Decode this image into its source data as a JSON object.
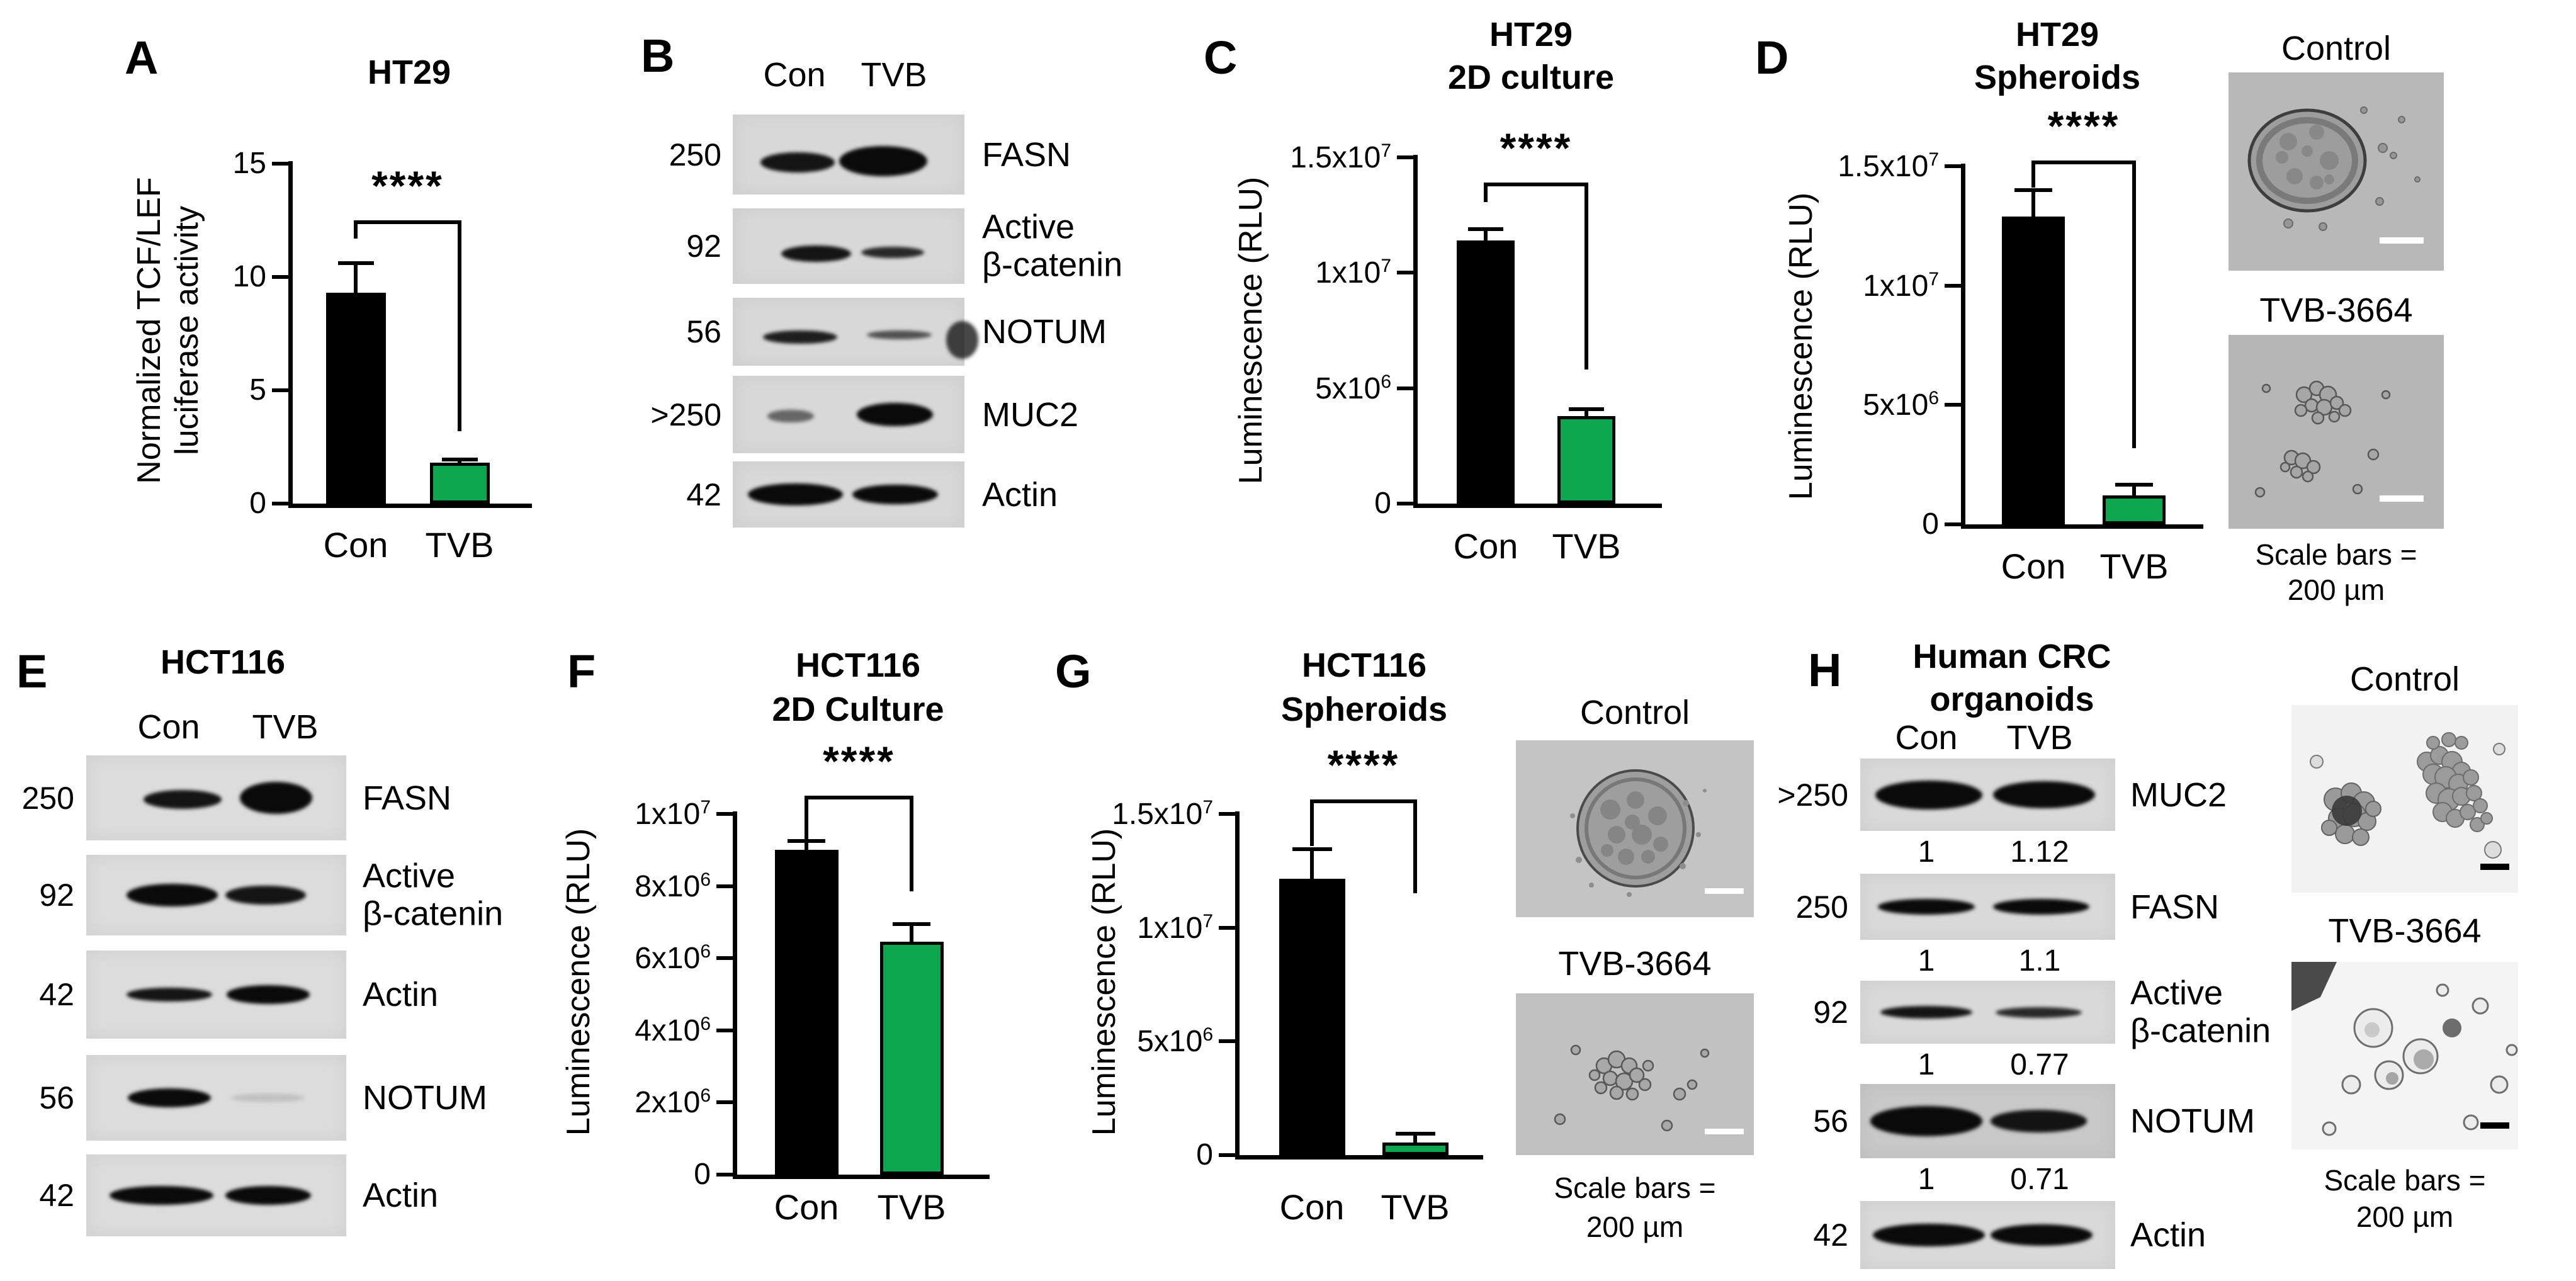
{
  "colors": {
    "control_bar": "#000000",
    "tvb_bar": "#0ca64e",
    "axis": "#000000"
  },
  "chart_data": [
    {
      "id": "A",
      "type": "bar",
      "panel_label": "A",
      "title_lines": [
        "HT29"
      ],
      "ylabel_lines": [
        "Normalized TCF/LEF",
        "luciferase activity"
      ],
      "categories": [
        "Con",
        "TVB"
      ],
      "values": [
        9.3,
        1.8
      ],
      "errors": [
        1.3,
        0.15
      ],
      "ylim": [
        0,
        15
      ],
      "yticks": [
        {
          "v": 0,
          "t": "0"
        },
        {
          "v": 5,
          "t": "5"
        },
        {
          "v": 10,
          "t": "10"
        },
        {
          "v": 15,
          "t": "15"
        }
      ],
      "significance": "****",
      "sig_geom": {
        "line": 12.5,
        "left": 11.7,
        "right": 3.2
      }
    },
    {
      "id": "C",
      "type": "bar",
      "panel_label": "C",
      "title_lines": [
        "HT29",
        "2D culture"
      ],
      "ylabel_lines": [
        "Luminescence (RLU)"
      ],
      "categories": [
        "Con",
        "TVB"
      ],
      "values": [
        11400000,
        3800000
      ],
      "errors": [
        500000,
        300000
      ],
      "ylim": [
        0,
        15000000
      ],
      "yticks": [
        {
          "v": 0,
          "t": "0"
        },
        {
          "v": 5000000,
          "t": "5x10^6"
        },
        {
          "v": 10000000,
          "t": "1x10^7"
        },
        {
          "v": 15000000,
          "t": "1.5x10^7"
        }
      ],
      "significance": "****",
      "sig_geom": {
        "line": 13900000,
        "left": 13050000,
        "right": 5800000
      }
    },
    {
      "id": "D",
      "type": "bar",
      "panel_label": "D",
      "title_lines": [
        "HT29",
        "Spheroids"
      ],
      "ylabel_lines": [
        "Luminescence (RLU)"
      ],
      "categories": [
        "Con",
        "TVB"
      ],
      "values": [
        12900000,
        1200000
      ],
      "errors": [
        1100000,
        450000
      ],
      "ylim": [
        0,
        15000000
      ],
      "yticks": [
        {
          "v": 0,
          "t": "0"
        },
        {
          "v": 5000000,
          "t": "5x10^6"
        },
        {
          "v": 10000000,
          "t": "1x10^7"
        },
        {
          "v": 15000000,
          "t": "1.5x10^7"
        }
      ],
      "significance": "****",
      "sig_geom": {
        "line": 15250000,
        "left": 14100000,
        "right": 3200000
      }
    },
    {
      "id": "F",
      "type": "bar",
      "panel_label": "F",
      "title_lines": [
        "HCT116",
        "2D Culture"
      ],
      "ylabel_lines": [
        "Luminescence (RLU)"
      ],
      "categories": [
        "Con",
        "TVB"
      ],
      "values": [
        9000000,
        6450000
      ],
      "errors": [
        250000,
        500000
      ],
      "ylim": [
        0,
        10000000
      ],
      "yticks": [
        {
          "v": 0,
          "t": "0"
        },
        {
          "v": 2000000,
          "t": "2x10^6"
        },
        {
          "v": 4000000,
          "t": "4x10^6"
        },
        {
          "v": 6000000,
          "t": "6x10^6"
        },
        {
          "v": 8000000,
          "t": "8x10^6"
        },
        {
          "v": 10000000,
          "t": "1x10^7"
        }
      ],
      "significance": "****",
      "sig_geom": {
        "line": 10500000,
        "left": 9250000,
        "right": 7850000
      }
    },
    {
      "id": "G",
      "type": "bar",
      "panel_label": "G",
      "title_lines": [
        "HCT116",
        "Spheroids"
      ],
      "ylabel_lines": [
        "Luminescence (RLU)"
      ],
      "categories": [
        "Con",
        "TVB"
      ],
      "values": [
        12150000,
        550000
      ],
      "errors": [
        1300000,
        400000
      ],
      "ylim": [
        0,
        15000000
      ],
      "yticks": [
        {
          "v": 0,
          "t": "0"
        },
        {
          "v": 5000000,
          "t": "5x10^6"
        },
        {
          "v": 10000000,
          "t": "1x10^7"
        },
        {
          "v": 15000000,
          "t": "1.5x10^7"
        }
      ],
      "significance": "****",
      "sig_geom": {
        "line": 15650000,
        "left": 13600000,
        "right": 11500000
      }
    }
  ],
  "blot_data": [
    {
      "id": "B",
      "panel_label": "B",
      "title_lines": [],
      "lanes": [
        "Con",
        "TVB"
      ],
      "rows": [
        {
          "marker": "250",
          "label_lines": [
            "FASN"
          ],
          "ratios": null,
          "bands": [
            {
              "c": 0.28,
              "w": 0.32,
              "h": 0.25,
              "o": 0.95,
              "dy": 0.1
            },
            {
              "c": 0.65,
              "w": 0.38,
              "h": 0.38,
              "o": 1,
              "dy": 0.08
            }
          ]
        },
        {
          "marker": "92",
          "label_lines": [
            "Active",
            "β-catenin"
          ],
          "ratios": null,
          "bands": [
            {
              "c": 0.36,
              "w": 0.3,
              "h": 0.22,
              "o": 0.95,
              "dy": 0.1
            },
            {
              "c": 0.69,
              "w": 0.27,
              "h": 0.15,
              "o": 0.85,
              "dy": 0.08
            }
          ]
        },
        {
          "marker": "56",
          "label_lines": [
            "NOTUM"
          ],
          "ratios": null,
          "bands": [
            {
              "c": 0.29,
              "w": 0.32,
              "h": 0.2,
              "o": 0.9,
              "dy": 0.08
            },
            {
              "c": 0.72,
              "w": 0.28,
              "h": 0.13,
              "o": 0.65,
              "dy": 0.05
            },
            {
              "c": 0.99,
              "w": 0.14,
              "h": 0.55,
              "o": 0.75,
              "dy": 0.12
            }
          ]
        },
        {
          "marker": ">250",
          "label_lines": [
            "MUC2"
          ],
          "ratios": null,
          "bands": [
            {
              "c": 0.25,
              "w": 0.2,
              "h": 0.17,
              "o": 0.55,
              "dy": 0.02
            },
            {
              "c": 0.7,
              "w": 0.33,
              "h": 0.3,
              "o": 1,
              "dy": 0
            }
          ]
        },
        {
          "marker": "42",
          "label_lines": [
            "Actin"
          ],
          "ratios": null,
          "bands": [
            {
              "c": 0.27,
              "w": 0.41,
              "h": 0.34,
              "o": 1,
              "dy": 0
            },
            {
              "c": 0.7,
              "w": 0.37,
              "h": 0.3,
              "o": 1,
              "dy": 0
            }
          ]
        }
      ]
    },
    {
      "id": "E",
      "panel_label": "E",
      "title_lines": [
        "HCT116"
      ],
      "lanes": [
        "Con",
        "TVB"
      ],
      "rows": [
        {
          "marker": "250",
          "label_lines": [
            "FASN"
          ],
          "ratios": null,
          "bands": [
            {
              "c": 0.37,
              "w": 0.3,
              "h": 0.22,
              "o": 0.95,
              "dy": 0.02
            },
            {
              "c": 0.73,
              "w": 0.28,
              "h": 0.38,
              "o": 1,
              "dy": 0
            }
          ]
        },
        {
          "marker": "92",
          "label_lines": [
            "Active",
            "β-catenin"
          ],
          "ratios": null,
          "bands": [
            {
              "c": 0.33,
              "w": 0.35,
              "h": 0.28,
              "o": 1,
              "dy": 0
            },
            {
              "c": 0.69,
              "w": 0.31,
              "h": 0.24,
              "o": 0.95,
              "dy": 0
            }
          ]
        },
        {
          "marker": "42",
          "label_lines": [
            "Actin"
          ],
          "ratios": null,
          "bands": [
            {
              "c": 0.32,
              "w": 0.33,
              "h": 0.16,
              "o": 0.95,
              "dy": 0
            },
            {
              "c": 0.7,
              "w": 0.32,
              "h": 0.21,
              "o": 1,
              "dy": 0
            }
          ]
        },
        {
          "marker": "56",
          "label_lines": [
            "NOTUM"
          ],
          "ratios": null,
          "bands": [
            {
              "c": 0.32,
              "w": 0.32,
              "h": 0.22,
              "o": 1,
              "dy": 0
            },
            {
              "c": 0.7,
              "w": 0.28,
              "h": 0.1,
              "o": 0.12,
              "dy": 0
            }
          ]
        },
        {
          "marker": "42",
          "label_lines": [
            "Actin"
          ],
          "ratios": null,
          "bands": [
            {
              "c": 0.29,
              "w": 0.4,
              "h": 0.23,
              "o": 1,
              "dy": 0
            },
            {
              "c": 0.7,
              "w": 0.33,
              "h": 0.23,
              "o": 1,
              "dy": 0
            }
          ]
        }
      ]
    },
    {
      "id": "H",
      "panel_label": "H",
      "title_lines": [
        "Human CRC",
        "organoids"
      ],
      "lanes": [
        "Con",
        "TVB"
      ],
      "rows": [
        {
          "marker": ">250",
          "label_lines": [
            "MUC2"
          ],
          "ratios": [
            "1",
            "1.12"
          ],
          "bands": [
            {
              "c": 0.27,
              "w": 0.42,
              "h": 0.4,
              "o": 1,
              "dy": 0
            },
            {
              "c": 0.72,
              "w": 0.4,
              "h": 0.38,
              "o": 1,
              "dy": 0
            }
          ]
        },
        {
          "marker": "250",
          "label_lines": [
            "FASN"
          ],
          "ratios": [
            "1",
            "1.1"
          ],
          "bands": [
            {
              "c": 0.26,
              "w": 0.38,
              "h": 0.24,
              "o": 1,
              "dy": 0
            },
            {
              "c": 0.71,
              "w": 0.38,
              "h": 0.24,
              "o": 1,
              "dy": 0
            }
          ]
        },
        {
          "marker": "92",
          "label_lines": [
            "Active",
            "β-catenin"
          ],
          "ratios": [
            "1",
            "0.77"
          ],
          "bands": [
            {
              "c": 0.26,
              "w": 0.36,
              "h": 0.2,
              "o": 0.95,
              "dy": 0
            },
            {
              "c": 0.7,
              "w": 0.34,
              "h": 0.17,
              "o": 0.85,
              "dy": 0
            }
          ]
        },
        {
          "marker": "56",
          "label_lines": [
            "NOTUM"
          ],
          "ratios": [
            "1",
            "0.71"
          ],
          "bg": "#c8c8c8",
          "bands": [
            {
              "c": 0.26,
              "w": 0.44,
              "h": 0.4,
              "o": 1,
              "dy": 0
            },
            {
              "c": 0.7,
              "w": 0.38,
              "h": 0.3,
              "o": 0.95,
              "dy": 0
            }
          ]
        },
        {
          "marker": "42",
          "label_lines": [
            "Actin"
          ],
          "ratios": null,
          "bands": [
            {
              "c": 0.27,
              "w": 0.44,
              "h": 0.34,
              "o": 1,
              "dy": 0
            },
            {
              "c": 0.71,
              "w": 0.4,
              "h": 0.32,
              "o": 1,
              "dy": 0
            }
          ]
        }
      ]
    }
  ],
  "microscopy": [
    {
      "panel": "D",
      "images": [
        {
          "label": "Control"
        },
        {
          "label": "TVB-3664"
        }
      ],
      "caption_lines": [
        "Scale bars =",
        "200 µm"
      ]
    },
    {
      "panel": "G",
      "images": [
        {
          "label": "Control"
        },
        {
          "label": "TVB-3664"
        }
      ],
      "caption_lines": [
        "Scale bars =",
        "200 µm"
      ]
    },
    {
      "panel": "H",
      "images": [
        {
          "label": "Control"
        },
        {
          "label": "TVB-3664"
        }
      ],
      "caption_lines": [
        "Scale bars =",
        "200 µm"
      ]
    }
  ]
}
